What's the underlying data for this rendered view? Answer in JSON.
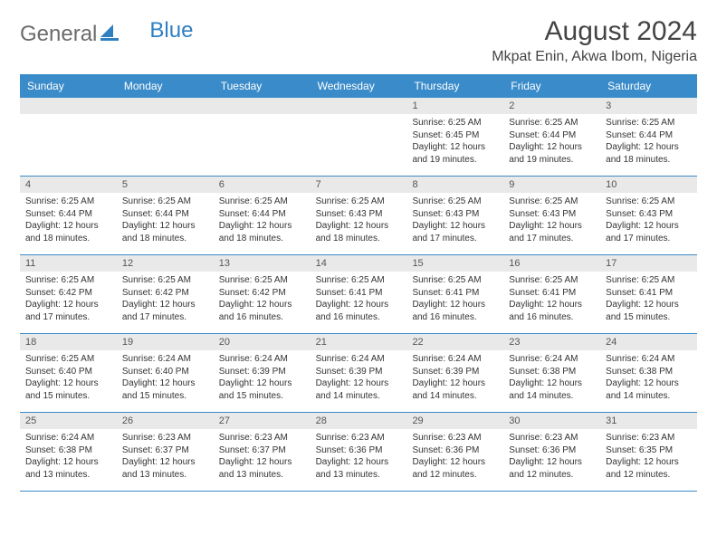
{
  "logo": {
    "word1": "General",
    "word2": "Blue"
  },
  "title": "August 2024",
  "location": "Mkpat Enin, Akwa Ibom, Nigeria",
  "colors": {
    "header_bg": "#3a8bc9",
    "header_text": "#ffffff",
    "daynum_bg": "#e9e9e9",
    "logo_gray": "#6b6b6b",
    "logo_blue": "#2f7fc1",
    "row_border": "#3a8bc9"
  },
  "weekdays": [
    "Sunday",
    "Monday",
    "Tuesday",
    "Wednesday",
    "Thursday",
    "Friday",
    "Saturday"
  ],
  "weeks": [
    [
      {
        "n": "",
        "empty": true
      },
      {
        "n": "",
        "empty": true
      },
      {
        "n": "",
        "empty": true
      },
      {
        "n": "",
        "empty": true
      },
      {
        "n": "1",
        "sunrise": "Sunrise: 6:25 AM",
        "sunset": "Sunset: 6:45 PM",
        "daylight": "Daylight: 12 hours and 19 minutes."
      },
      {
        "n": "2",
        "sunrise": "Sunrise: 6:25 AM",
        "sunset": "Sunset: 6:44 PM",
        "daylight": "Daylight: 12 hours and 19 minutes."
      },
      {
        "n": "3",
        "sunrise": "Sunrise: 6:25 AM",
        "sunset": "Sunset: 6:44 PM",
        "daylight": "Daylight: 12 hours and 18 minutes."
      }
    ],
    [
      {
        "n": "4",
        "sunrise": "Sunrise: 6:25 AM",
        "sunset": "Sunset: 6:44 PM",
        "daylight": "Daylight: 12 hours and 18 minutes."
      },
      {
        "n": "5",
        "sunrise": "Sunrise: 6:25 AM",
        "sunset": "Sunset: 6:44 PM",
        "daylight": "Daylight: 12 hours and 18 minutes."
      },
      {
        "n": "6",
        "sunrise": "Sunrise: 6:25 AM",
        "sunset": "Sunset: 6:44 PM",
        "daylight": "Daylight: 12 hours and 18 minutes."
      },
      {
        "n": "7",
        "sunrise": "Sunrise: 6:25 AM",
        "sunset": "Sunset: 6:43 PM",
        "daylight": "Daylight: 12 hours and 18 minutes."
      },
      {
        "n": "8",
        "sunrise": "Sunrise: 6:25 AM",
        "sunset": "Sunset: 6:43 PM",
        "daylight": "Daylight: 12 hours and 17 minutes."
      },
      {
        "n": "9",
        "sunrise": "Sunrise: 6:25 AM",
        "sunset": "Sunset: 6:43 PM",
        "daylight": "Daylight: 12 hours and 17 minutes."
      },
      {
        "n": "10",
        "sunrise": "Sunrise: 6:25 AM",
        "sunset": "Sunset: 6:43 PM",
        "daylight": "Daylight: 12 hours and 17 minutes."
      }
    ],
    [
      {
        "n": "11",
        "sunrise": "Sunrise: 6:25 AM",
        "sunset": "Sunset: 6:42 PM",
        "daylight": "Daylight: 12 hours and 17 minutes."
      },
      {
        "n": "12",
        "sunrise": "Sunrise: 6:25 AM",
        "sunset": "Sunset: 6:42 PM",
        "daylight": "Daylight: 12 hours and 17 minutes."
      },
      {
        "n": "13",
        "sunrise": "Sunrise: 6:25 AM",
        "sunset": "Sunset: 6:42 PM",
        "daylight": "Daylight: 12 hours and 16 minutes."
      },
      {
        "n": "14",
        "sunrise": "Sunrise: 6:25 AM",
        "sunset": "Sunset: 6:41 PM",
        "daylight": "Daylight: 12 hours and 16 minutes."
      },
      {
        "n": "15",
        "sunrise": "Sunrise: 6:25 AM",
        "sunset": "Sunset: 6:41 PM",
        "daylight": "Daylight: 12 hours and 16 minutes."
      },
      {
        "n": "16",
        "sunrise": "Sunrise: 6:25 AM",
        "sunset": "Sunset: 6:41 PM",
        "daylight": "Daylight: 12 hours and 16 minutes."
      },
      {
        "n": "17",
        "sunrise": "Sunrise: 6:25 AM",
        "sunset": "Sunset: 6:41 PM",
        "daylight": "Daylight: 12 hours and 15 minutes."
      }
    ],
    [
      {
        "n": "18",
        "sunrise": "Sunrise: 6:25 AM",
        "sunset": "Sunset: 6:40 PM",
        "daylight": "Daylight: 12 hours and 15 minutes."
      },
      {
        "n": "19",
        "sunrise": "Sunrise: 6:24 AM",
        "sunset": "Sunset: 6:40 PM",
        "daylight": "Daylight: 12 hours and 15 minutes."
      },
      {
        "n": "20",
        "sunrise": "Sunrise: 6:24 AM",
        "sunset": "Sunset: 6:39 PM",
        "daylight": "Daylight: 12 hours and 15 minutes."
      },
      {
        "n": "21",
        "sunrise": "Sunrise: 6:24 AM",
        "sunset": "Sunset: 6:39 PM",
        "daylight": "Daylight: 12 hours and 14 minutes."
      },
      {
        "n": "22",
        "sunrise": "Sunrise: 6:24 AM",
        "sunset": "Sunset: 6:39 PM",
        "daylight": "Daylight: 12 hours and 14 minutes."
      },
      {
        "n": "23",
        "sunrise": "Sunrise: 6:24 AM",
        "sunset": "Sunset: 6:38 PM",
        "daylight": "Daylight: 12 hours and 14 minutes."
      },
      {
        "n": "24",
        "sunrise": "Sunrise: 6:24 AM",
        "sunset": "Sunset: 6:38 PM",
        "daylight": "Daylight: 12 hours and 14 minutes."
      }
    ],
    [
      {
        "n": "25",
        "sunrise": "Sunrise: 6:24 AM",
        "sunset": "Sunset: 6:38 PM",
        "daylight": "Daylight: 12 hours and 13 minutes."
      },
      {
        "n": "26",
        "sunrise": "Sunrise: 6:23 AM",
        "sunset": "Sunset: 6:37 PM",
        "daylight": "Daylight: 12 hours and 13 minutes."
      },
      {
        "n": "27",
        "sunrise": "Sunrise: 6:23 AM",
        "sunset": "Sunset: 6:37 PM",
        "daylight": "Daylight: 12 hours and 13 minutes."
      },
      {
        "n": "28",
        "sunrise": "Sunrise: 6:23 AM",
        "sunset": "Sunset: 6:36 PM",
        "daylight": "Daylight: 12 hours and 13 minutes."
      },
      {
        "n": "29",
        "sunrise": "Sunrise: 6:23 AM",
        "sunset": "Sunset: 6:36 PM",
        "daylight": "Daylight: 12 hours and 12 minutes."
      },
      {
        "n": "30",
        "sunrise": "Sunrise: 6:23 AM",
        "sunset": "Sunset: 6:36 PM",
        "daylight": "Daylight: 12 hours and 12 minutes."
      },
      {
        "n": "31",
        "sunrise": "Sunrise: 6:23 AM",
        "sunset": "Sunset: 6:35 PM",
        "daylight": "Daylight: 12 hours and 12 minutes."
      }
    ]
  ]
}
